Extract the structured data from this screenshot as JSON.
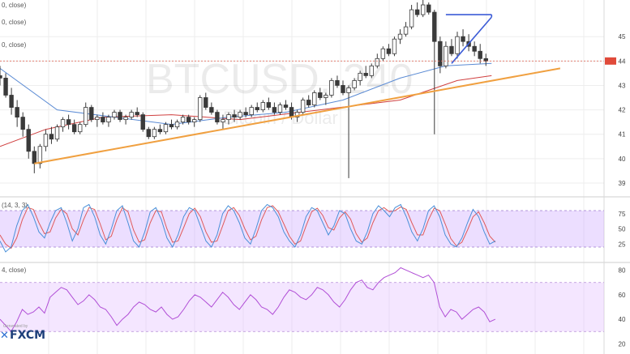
{
  "chart_data": [
    {
      "type": "candlestick",
      "symbol": "BTCUSD",
      "interval": "240",
      "watermark_title": "BTCUSD, 240",
      "watermark_subtitle": "Bitcoin / Dollar",
      "legend_fragments": [
        "0, close)",
        "0, close)",
        "0, close)"
      ],
      "price_axis_ticks": [
        "45",
        "44",
        "43",
        "42",
        "41",
        "40",
        "39"
      ],
      "ylim": [
        38.6,
        46.5
      ],
      "candles": [
        [
          43.4,
          43.8,
          43.0,
          43.3
        ],
        [
          43.3,
          43.5,
          42.5,
          42.6
        ],
        [
          42.6,
          42.9,
          41.8,
          42.1
        ],
        [
          42.1,
          42.4,
          41.3,
          41.7
        ],
        [
          41.7,
          41.9,
          40.9,
          41.2
        ],
        [
          41.2,
          41.4,
          40.0,
          40.3
        ],
        [
          40.3,
          40.5,
          39.4,
          39.8
        ],
        [
          39.8,
          40.6,
          39.6,
          40.5
        ],
        [
          40.5,
          41.2,
          40.3,
          41.0
        ],
        [
          41.0,
          41.3,
          40.6,
          40.8
        ],
        [
          40.8,
          41.4,
          40.7,
          41.3
        ],
        [
          41.3,
          41.7,
          41.1,
          41.6
        ],
        [
          41.6,
          41.8,
          41.2,
          41.4
        ],
        [
          41.4,
          41.6,
          41.0,
          41.1
        ],
        [
          41.1,
          41.5,
          41.0,
          41.4
        ],
        [
          41.4,
          42.3,
          41.3,
          42.1
        ],
        [
          42.1,
          42.2,
          41.5,
          41.6
        ],
        [
          41.6,
          41.8,
          41.3,
          41.7
        ],
        [
          41.7,
          41.9,
          41.4,
          41.5
        ],
        [
          41.5,
          41.8,
          41.3,
          41.7
        ],
        [
          41.7,
          42.0,
          41.6,
          41.9
        ],
        [
          41.9,
          42.0,
          41.5,
          41.6
        ],
        [
          41.6,
          41.8,
          41.4,
          41.7
        ],
        [
          41.7,
          42.0,
          41.6,
          41.9
        ],
        [
          41.9,
          42.1,
          41.7,
          41.8
        ],
        [
          41.8,
          41.9,
          41.1,
          41.2
        ],
        [
          41.2,
          41.3,
          40.8,
          40.9
        ],
        [
          40.9,
          41.3,
          40.8,
          41.2
        ],
        [
          41.2,
          41.4,
          41.0,
          41.1
        ],
        [
          41.1,
          41.5,
          41.0,
          41.4
        ],
        [
          41.4,
          41.6,
          41.2,
          41.3
        ],
        [
          41.3,
          41.6,
          41.2,
          41.5
        ],
        [
          41.5,
          41.8,
          41.4,
          41.7
        ],
        [
          41.7,
          41.8,
          41.4,
          41.5
        ],
        [
          41.5,
          41.7,
          41.3,
          41.6
        ],
        [
          41.6,
          42.6,
          41.5,
          42.5
        ],
        [
          42.5,
          42.7,
          42.0,
          42.1
        ],
        [
          42.1,
          42.3,
          41.8,
          41.9
        ],
        [
          41.9,
          42.0,
          41.4,
          41.5
        ],
        [
          41.5,
          41.8,
          41.2,
          41.6
        ],
        [
          41.6,
          41.9,
          41.4,
          41.8
        ],
        [
          41.8,
          42.0,
          41.5,
          41.7
        ],
        [
          41.7,
          42.0,
          41.6,
          41.9
        ],
        [
          41.9,
          42.1,
          41.7,
          41.8
        ],
        [
          41.8,
          42.2,
          41.7,
          42.1
        ],
        [
          42.1,
          42.3,
          41.9,
          42.0
        ],
        [
          42.0,
          42.4,
          41.9,
          42.3
        ],
        [
          42.3,
          42.5,
          42.0,
          42.1
        ],
        [
          42.1,
          42.3,
          41.8,
          41.9
        ],
        [
          41.9,
          42.3,
          41.8,
          42.2
        ],
        [
          42.2,
          42.4,
          42.0,
          42.1
        ],
        [
          42.1,
          42.3,
          41.6,
          41.7
        ],
        [
          41.7,
          42.0,
          41.5,
          41.9
        ],
        [
          41.9,
          42.5,
          41.8,
          42.4
        ],
        [
          42.4,
          42.6,
          42.1,
          42.2
        ],
        [
          42.2,
          42.8,
          42.1,
          42.7
        ],
        [
          42.7,
          42.9,
          42.4,
          42.5
        ],
        [
          42.5,
          42.7,
          42.2,
          42.6
        ],
        [
          42.6,
          43.3,
          42.5,
          43.2
        ],
        [
          43.2,
          43.4,
          42.9,
          43.0
        ],
        [
          43.0,
          43.2,
          42.6,
          42.7
        ],
        [
          42.7,
          43.0,
          39.2,
          42.9
        ],
        [
          42.9,
          43.3,
          42.8,
          43.2
        ],
        [
          43.2,
          43.6,
          43.0,
          43.5
        ],
        [
          43.5,
          43.8,
          43.3,
          43.4
        ],
        [
          43.4,
          43.9,
          43.3,
          43.8
        ],
        [
          43.8,
          44.3,
          43.7,
          44.1
        ],
        [
          44.1,
          44.6,
          44.0,
          44.5
        ],
        [
          44.5,
          44.7,
          44.2,
          44.3
        ],
        [
          44.3,
          45.0,
          44.2,
          44.9
        ],
        [
          44.9,
          45.3,
          44.7,
          45.1
        ],
        [
          45.1,
          45.6,
          45.0,
          45.4
        ],
        [
          45.4,
          46.3,
          45.3,
          46.1
        ],
        [
          46.1,
          46.4,
          45.8,
          45.9
        ],
        [
          45.9,
          46.5,
          45.8,
          46.3
        ],
        [
          46.3,
          46.4,
          45.9,
          46.0
        ],
        [
          46.0,
          46.1,
          41.0,
          44.8
        ],
        [
          44.8,
          45.0,
          43.5,
          43.8
        ],
        [
          43.8,
          44.8,
          43.7,
          44.6
        ],
        [
          44.6,
          44.9,
          44.2,
          44.3
        ],
        [
          44.3,
          45.2,
          44.1,
          45.0
        ],
        [
          45.0,
          45.3,
          44.6,
          44.8
        ],
        [
          44.8,
          45.1,
          44.4,
          44.6
        ],
        [
          44.6,
          44.8,
          44.2,
          44.4
        ],
        [
          44.4,
          44.7,
          43.9,
          44.1
        ],
        [
          44.1,
          44.3,
          43.8,
          44.0
        ]
      ],
      "overlays": {
        "ma_fast": [
          [
            0,
            43.7
          ],
          [
            10,
            42.0
          ],
          [
            20,
            41.7
          ],
          [
            30,
            41.4
          ],
          [
            40,
            41.7
          ],
          [
            50,
            41.9
          ],
          [
            60,
            42.4
          ],
          [
            70,
            43.3
          ],
          [
            78,
            43.8
          ],
          [
            86,
            43.9
          ]
        ],
        "ma_slow": [
          [
            0,
            40.5
          ],
          [
            8,
            41.2
          ],
          [
            18,
            41.7
          ],
          [
            30,
            41.8
          ],
          [
            42,
            41.6
          ],
          [
            56,
            42.0
          ],
          [
            70,
            42.4
          ],
          [
            80,
            43.2
          ],
          [
            86,
            43.4
          ]
        ]
      },
      "trendlines": [
        {
          "name": "rising support",
          "from": [
            6,
            39.8
          ],
          "to": [
            98,
            43.7
          ]
        },
        {
          "name": "triangle upper",
          "from": [
            78,
            45.9
          ],
          "to": [
            86,
            45.9
          ]
        },
        {
          "name": "triangle lower",
          "from": [
            79,
            43.9
          ],
          "to": [
            86,
            45.8
          ]
        }
      ],
      "colors": {
        "up": "#3a3a3a",
        "down": "#3a3a3a",
        "support": "#f0a040",
        "triangle": "#3b5bd6",
        "ma_fast": "#5b8bd4",
        "ma_slow": "#d04040"
      }
    },
    {
      "type": "line",
      "name": "Stochastic",
      "legend_fragment": "(14, 3, 3)",
      "axis_ticks": [
        "75",
        "50",
        "25"
      ],
      "ylim": [
        0,
        100
      ],
      "band": [
        20,
        80
      ],
      "k": [
        30,
        12,
        20,
        55,
        80,
        90,
        70,
        45,
        35,
        60,
        80,
        85,
        60,
        30,
        50,
        85,
        90,
        70,
        40,
        25,
        50,
        80,
        88,
        60,
        30,
        20,
        45,
        78,
        85,
        65,
        35,
        20,
        40,
        70,
        85,
        80,
        55,
        30,
        20,
        40,
        75,
        88,
        80,
        60,
        35,
        25,
        50,
        80,
        90,
        85,
        70,
        45,
        30,
        20,
        40,
        70,
        85,
        80,
        60,
        40,
        55,
        80,
        75,
        50,
        30,
        25,
        45,
        75,
        88,
        80,
        70,
        85,
        90,
        70,
        45,
        30,
        50,
        80,
        88,
        70,
        40,
        25,
        20,
        35,
        60,
        82,
        70,
        45,
        25,
        30
      ],
      "d": [
        40,
        25,
        18,
        35,
        65,
        85,
        82,
        60,
        42,
        45,
        68,
        82,
        75,
        50,
        40,
        65,
        85,
        82,
        58,
        32,
        38,
        65,
        85,
        78,
        48,
        28,
        32,
        60,
        80,
        78,
        50,
        28,
        30,
        52,
        75,
        84,
        70,
        45,
        28,
        30,
        55,
        80,
        85,
        72,
        50,
        32,
        38,
        65,
        85,
        88,
        78,
        58,
        38,
        25,
        30,
        55,
        78,
        84,
        72,
        52,
        48,
        68,
        78,
        66,
        42,
        28,
        35,
        60,
        80,
        85,
        78,
        80,
        86,
        82,
        60,
        40,
        40,
        65,
        84,
        80,
        58,
        34,
        22,
        28,
        48,
        70,
        78,
        60,
        38,
        28
      ]
    },
    {
      "type": "line",
      "name": "RSI",
      "legend_fragment": "4, close)",
      "axis_ticks": [
        "80",
        "60",
        "40",
        "20"
      ],
      "ylim": [
        15,
        85
      ],
      "band": [
        30,
        70
      ],
      "values": [
        40,
        35,
        30,
        38,
        48,
        44,
        46,
        50,
        45,
        58,
        62,
        66,
        64,
        58,
        52,
        55,
        60,
        56,
        50,
        48,
        42,
        35,
        40,
        44,
        50,
        54,
        52,
        48,
        46,
        50,
        44,
        40,
        42,
        48,
        55,
        60,
        58,
        54,
        50,
        56,
        62,
        58,
        52,
        48,
        54,
        60,
        56,
        50,
        48,
        44,
        50,
        58,
        64,
        62,
        58,
        56,
        60,
        66,
        64,
        60,
        54,
        50,
        56,
        64,
        70,
        72,
        66,
        64,
        70,
        74,
        76,
        78,
        82,
        80,
        78,
        76,
        74,
        76,
        70,
        50,
        42,
        48,
        46,
        40,
        44,
        48,
        50,
        46,
        38,
        40
      ],
      "credit_text": "Generated by",
      "brand_text": "FXCM"
    }
  ]
}
